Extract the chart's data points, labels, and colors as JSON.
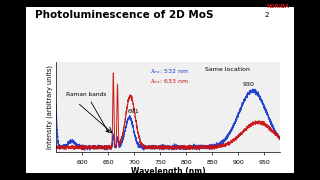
{
  "title": "Photoluminescence of 2D MoS",
  "title2": "$_2$",
  "xlabel": "Wavelength (nm)",
  "ylabel": "Intensity (arbitrary units)",
  "xlim": [
    550,
    980
  ],
  "outer_bg": "#1a1a1a",
  "panel_bg": "#ffffff",
  "chart_bg": "#f5f5f5",
  "annotation_raman": "Raman bands",
  "annotation_691": "691",
  "annotation_930": "930",
  "annotation_same": "Same location",
  "legend_blue": "λ",
  "legend_red": "λ",
  "blue_color": "#1a3bcc",
  "red_color": "#cc1111",
  "horiba_color": "#cc1111",
  "xticks": [
    600,
    650,
    700,
    750,
    800,
    850,
    900,
    950
  ]
}
